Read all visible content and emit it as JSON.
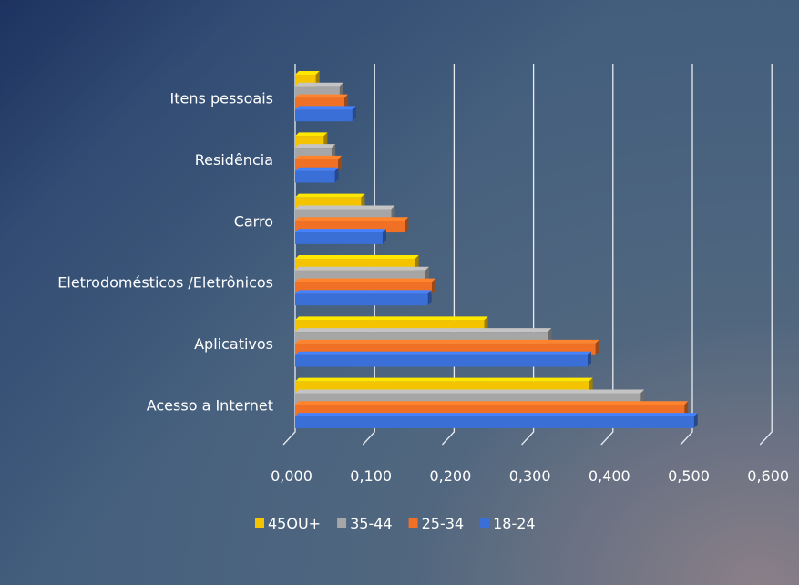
{
  "chart_data": {
    "type": "bar",
    "orientation": "horizontal",
    "style": "3d-clustered",
    "categories": [
      "Itens pessoais",
      "Residência",
      "Carro",
      "Eletrodomésticos /Eletrônicos",
      "Aplicativos",
      "Acesso a Internet"
    ],
    "series": [
      {
        "name": "45OU+",
        "color": "#f5c400",
        "values": [
          0.026,
          0.036,
          0.083,
          0.151,
          0.238,
          0.37
        ]
      },
      {
        "name": "35-44",
        "color": "#a6a6a6",
        "values": [
          0.056,
          0.046,
          0.121,
          0.164,
          0.318,
          0.435
        ]
      },
      {
        "name": "25-34",
        "color": "#f07026",
        "values": [
          0.062,
          0.054,
          0.138,
          0.172,
          0.378,
          0.49
        ]
      },
      {
        "name": "18-24",
        "color": "#3a6fd8",
        "values": [
          0.072,
          0.05,
          0.11,
          0.167,
          0.368,
          0.502
        ]
      }
    ],
    "xlim": [
      0,
      0.6
    ],
    "xticks": [
      "0,000",
      "0,100",
      "0,200",
      "0,300",
      "0,400",
      "0,500",
      "0,600"
    ],
    "grid": true,
    "legend_position": "bottom",
    "title": "",
    "xlabel": "",
    "ylabel": ""
  }
}
